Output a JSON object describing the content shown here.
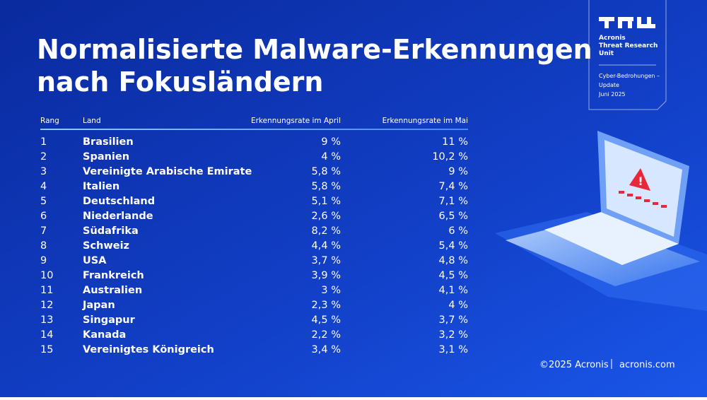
{
  "header": {
    "title_lines": [
      "Normalisierte Malware-Erkennungen",
      "nach Fokusländern"
    ]
  },
  "badge": {
    "org_lines": [
      "Acronis",
      "Threat Research",
      "Unit"
    ],
    "topic_lines": [
      "Cyber-Bedrohungen –",
      "Update",
      "Juni 2025"
    ]
  },
  "table": {
    "columns": [
      "Rang",
      "Land",
      "Erkennungsrate im April",
      "Erkennungsrate im Mai"
    ],
    "rows": [
      [
        "1",
        "Brasilien",
        "9 %",
        "11 %"
      ],
      [
        "2",
        "Spanien",
        "4 %",
        "10,2 %"
      ],
      [
        "3",
        "Vereinigte Arabische Emirate",
        "5,8 %",
        "9 %"
      ],
      [
        "4",
        "Italien",
        "5,8 %",
        "7,4 %"
      ],
      [
        "5",
        "Deutschland",
        "5,1 %",
        "7,1 %"
      ],
      [
        "6",
        "Niederlande",
        "2,6 %",
        "6,5 %"
      ],
      [
        "7",
        "Südafrika",
        "8,2 %",
        "6 %"
      ],
      [
        "8",
        "Schweiz",
        "4,4 %",
        "5,4 %"
      ],
      [
        "9",
        "USA",
        "3,7 %",
        "4,8 %"
      ],
      [
        "10",
        "Frankreich",
        "3,9 %",
        "4,5 %"
      ],
      [
        "11",
        "Australien",
        "3 %",
        "4,1 %"
      ],
      [
        "12",
        "Japan",
        "2,3 %",
        "4 %"
      ],
      [
        "13",
        "Singapur",
        "4,5 %",
        "3,7 %"
      ],
      [
        "14",
        "Kanada",
        "2,2 %",
        "3,2 %"
      ],
      [
        "15",
        "Vereinigtes Königreich",
        "3,4 %",
        "3,1 %"
      ]
    ]
  },
  "footer": {
    "copyright": "©2025 Acronis",
    "site": "acronis.com"
  }
}
